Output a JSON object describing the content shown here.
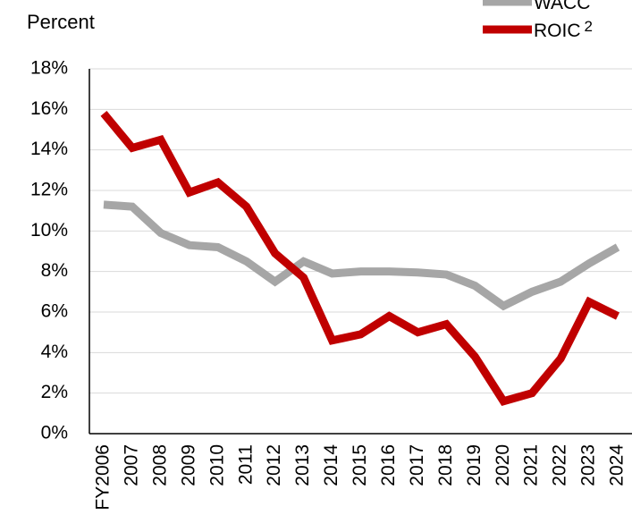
{
  "chart_data": {
    "type": "line",
    "subtitle": "Percent",
    "categories": [
      "FY2006",
      "2007",
      "2008",
      "2009",
      "2010",
      "2011",
      "2012",
      "2013",
      "2014",
      "2015",
      "2016",
      "2017",
      "2018",
      "2019",
      "2020",
      "2021",
      "2022",
      "2023",
      "2024"
    ],
    "series": [
      {
        "name": "WACC",
        "color": "#a6a6a6",
        "values": [
          11.3,
          11.2,
          9.9,
          9.3,
          9.2,
          8.5,
          7.5,
          8.5,
          7.9,
          8.0,
          8.0,
          7.95,
          7.85,
          7.3,
          6.3,
          7.0,
          7.5,
          8.4,
          9.2
        ]
      },
      {
        "name": "ROIC",
        "name_superscript": "2",
        "color": "#c00000",
        "values": [
          15.8,
          14.1,
          14.5,
          11.9,
          12.4,
          11.2,
          8.9,
          7.7,
          4.6,
          4.9,
          5.8,
          5.0,
          5.4,
          3.8,
          1.6,
          2.0,
          3.7,
          6.5,
          5.8
        ]
      }
    ],
    "ylim": [
      0,
      18
    ],
    "yticks": [
      {
        "value": 0,
        "label": "0%"
      },
      {
        "value": 2,
        "label": "2%"
      },
      {
        "value": 4,
        "label": "4%"
      },
      {
        "value": 6,
        "label": "6%"
      },
      {
        "value": 8,
        "label": "8%"
      },
      {
        "value": 10,
        "label": "10%"
      },
      {
        "value": 12,
        "label": "12%"
      },
      {
        "value": 14,
        "label": "14%"
      },
      {
        "value": 16,
        "label": "16%"
      },
      {
        "value": 18,
        "label": "18%"
      }
    ],
    "grid": true
  }
}
